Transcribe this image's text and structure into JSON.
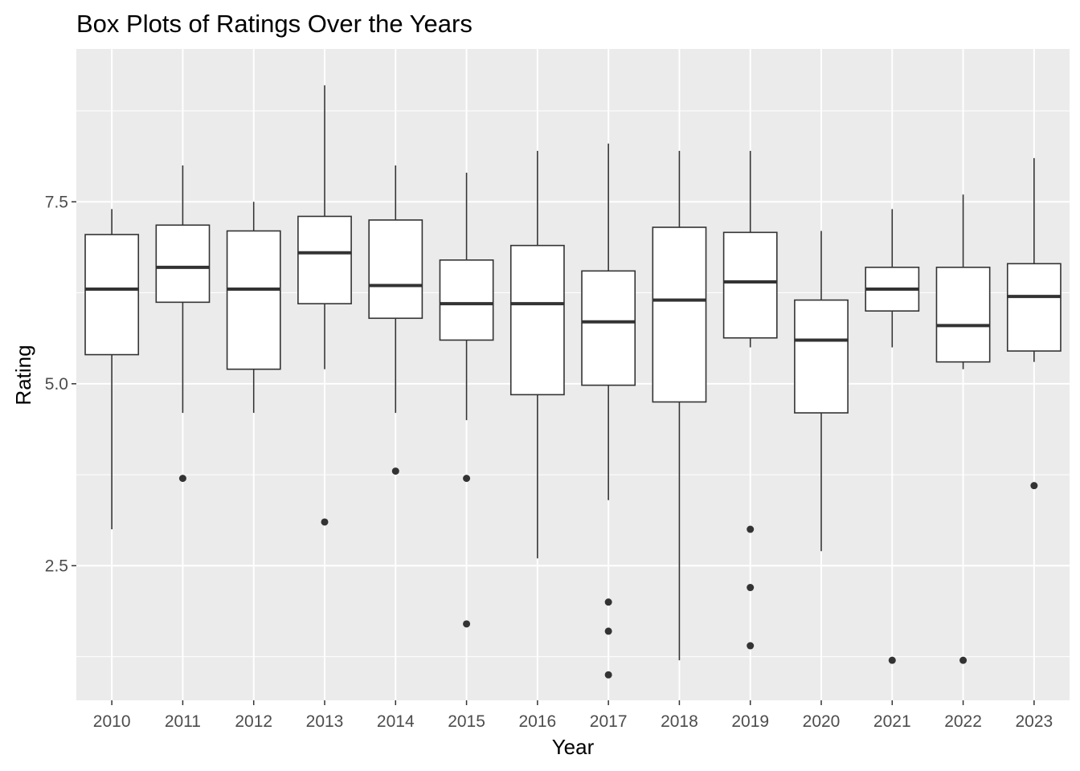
{
  "chart_data": {
    "type": "boxplot",
    "title": "Box Plots of Ratings Over the Years",
    "xlabel": "Year",
    "ylabel": "Rating",
    "ylim": [
      0.65,
      9.6
    ],
    "yticks": [
      2.5,
      5.0,
      7.5
    ],
    "ytick_labels": [
      "2.5",
      "5.0",
      "7.5"
    ],
    "grid": true,
    "colors": {
      "panel": "#ebebeb",
      "grid": "#ffffff",
      "box_fill": "#ffffff",
      "box_stroke": "#333333",
      "outlier": "#333333"
    },
    "categories": [
      "2010",
      "2011",
      "2012",
      "2013",
      "2014",
      "2015",
      "2016",
      "2017",
      "2018",
      "2019",
      "2020",
      "2021",
      "2022",
      "2023"
    ],
    "boxes": [
      {
        "year": "2010",
        "whisker_low": 3.0,
        "q1": 5.4,
        "median": 6.3,
        "q3": 7.05,
        "whisker_high": 7.4,
        "outliers": []
      },
      {
        "year": "2011",
        "whisker_low": 4.6,
        "q1": 6.12,
        "median": 6.6,
        "q3": 7.18,
        "whisker_high": 8.0,
        "outliers": [
          3.7
        ]
      },
      {
        "year": "2012",
        "whisker_low": 4.6,
        "q1": 5.2,
        "median": 6.3,
        "q3": 7.1,
        "whisker_high": 7.5,
        "outliers": []
      },
      {
        "year": "2013",
        "whisker_low": 5.2,
        "q1": 6.1,
        "median": 6.8,
        "q3": 7.3,
        "whisker_high": 9.1,
        "outliers": [
          3.1
        ]
      },
      {
        "year": "2014",
        "whisker_low": 4.6,
        "q1": 5.9,
        "median": 6.35,
        "q3": 7.25,
        "whisker_high": 8.0,
        "outliers": [
          3.8
        ]
      },
      {
        "year": "2015",
        "whisker_low": 4.5,
        "q1": 5.6,
        "median": 6.1,
        "q3": 6.7,
        "whisker_high": 7.9,
        "outliers": [
          3.7,
          1.7
        ]
      },
      {
        "year": "2016",
        "whisker_low": 2.6,
        "q1": 4.85,
        "median": 6.1,
        "q3": 6.9,
        "whisker_high": 8.2,
        "outliers": []
      },
      {
        "year": "2017",
        "whisker_low": 3.4,
        "q1": 4.98,
        "median": 5.85,
        "q3": 6.55,
        "whisker_high": 8.3,
        "outliers": [
          2.0,
          1.6,
          1.0
        ]
      },
      {
        "year": "2018",
        "whisker_low": 1.2,
        "q1": 4.75,
        "median": 6.15,
        "q3": 7.15,
        "whisker_high": 8.2,
        "outliers": []
      },
      {
        "year": "2019",
        "whisker_low": 5.5,
        "q1": 5.63,
        "median": 6.4,
        "q3": 7.08,
        "whisker_high": 8.2,
        "outliers": [
          3.0,
          2.2,
          1.4
        ]
      },
      {
        "year": "2020",
        "whisker_low": 2.7,
        "q1": 4.6,
        "median": 5.6,
        "q3": 6.15,
        "whisker_high": 7.1,
        "outliers": []
      },
      {
        "year": "2021",
        "whisker_low": 5.5,
        "q1": 6.0,
        "median": 6.3,
        "q3": 6.6,
        "whisker_high": 7.4,
        "outliers": [
          1.2
        ]
      },
      {
        "year": "2022",
        "whisker_low": 5.2,
        "q1": 5.3,
        "median": 5.8,
        "q3": 6.6,
        "whisker_high": 7.6,
        "outliers": [
          1.2
        ]
      },
      {
        "year": "2023",
        "whisker_low": 5.3,
        "q1": 5.45,
        "median": 6.2,
        "q3": 6.65,
        "whisker_high": 8.1,
        "outliers": [
          3.6
        ]
      }
    ]
  }
}
